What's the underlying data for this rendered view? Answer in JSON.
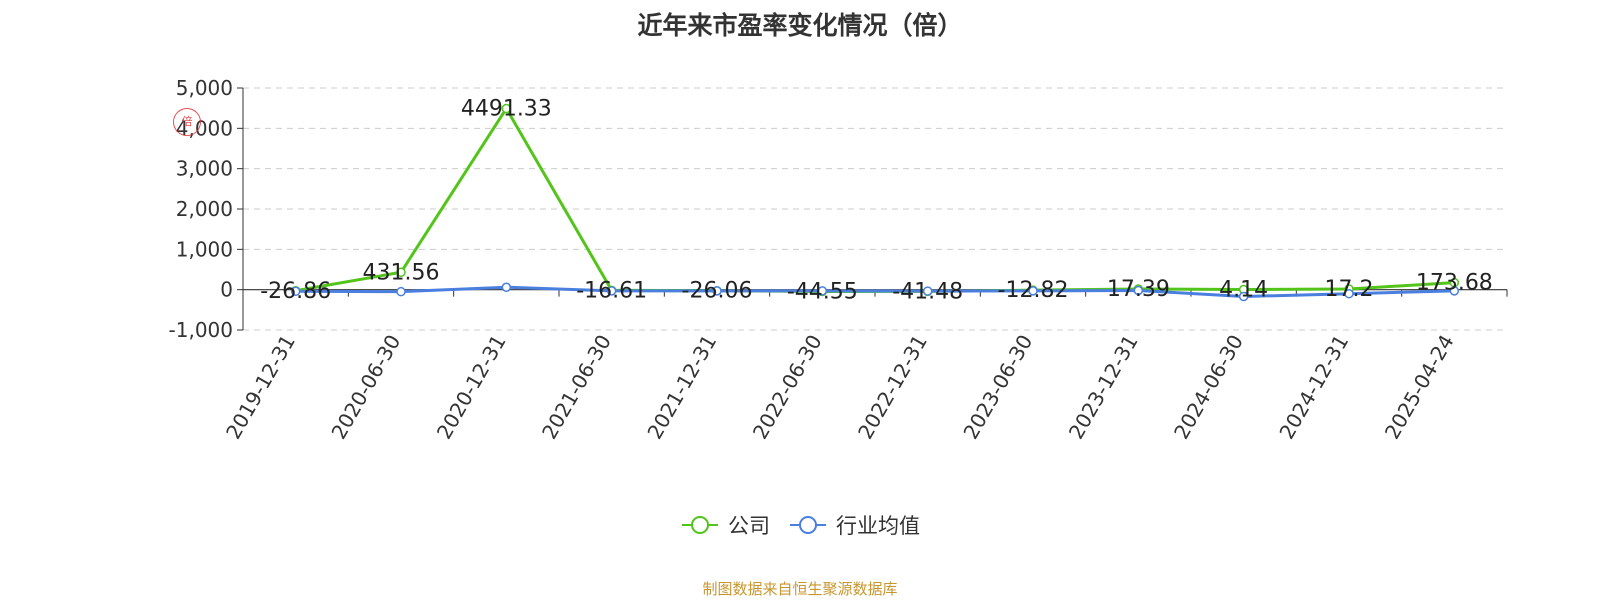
{
  "chart_data": {
    "type": "line",
    "title": "近年来市盈率变化情况（倍）",
    "categories": [
      "2019-12-31",
      "2020-06-30",
      "2020-12-31",
      "2021-06-30",
      "2021-12-31",
      "2022-06-30",
      "2022-12-31",
      "2023-06-30",
      "2023-12-31",
      "2024-06-30",
      "2024-12-31",
      "2025-04-24"
    ],
    "series": [
      {
        "name": "公司",
        "color": "#52c41a",
        "values": [
          -26.86,
          431.56,
          4491.33,
          -16.61,
          -26.06,
          -44.55,
          -41.48,
          -12.82,
          17.39,
          4.14,
          17.2,
          173.68
        ],
        "labels": [
          "-26.86",
          "431.56",
          "4491.33",
          "-16.61",
          "-26.06",
          "-44.55",
          "-41.48",
          "-12.82",
          "17.39",
          "4.14",
          "17.2",
          "173.68"
        ]
      },
      {
        "name": "行业均值",
        "color": "#4a7fe0",
        "values": [
          -40,
          -50,
          60,
          -30,
          -30,
          -30,
          -35,
          -30,
          -20,
          -170,
          -100,
          -30
        ]
      }
    ],
    "ylim": [
      -1000,
      5000
    ],
    "yticks": [
      -1000,
      0,
      1000,
      2000,
      3000,
      4000,
      5000
    ],
    "ytick_labels": [
      "-1,000",
      "0",
      "1,000",
      "2,000",
      "3,000",
      "4,000",
      "5,000"
    ],
    "grid": true,
    "legend_position": "bottom-center"
  },
  "source_text": "制图数据来自恒生聚源数据库",
  "watermark_text": "倍"
}
